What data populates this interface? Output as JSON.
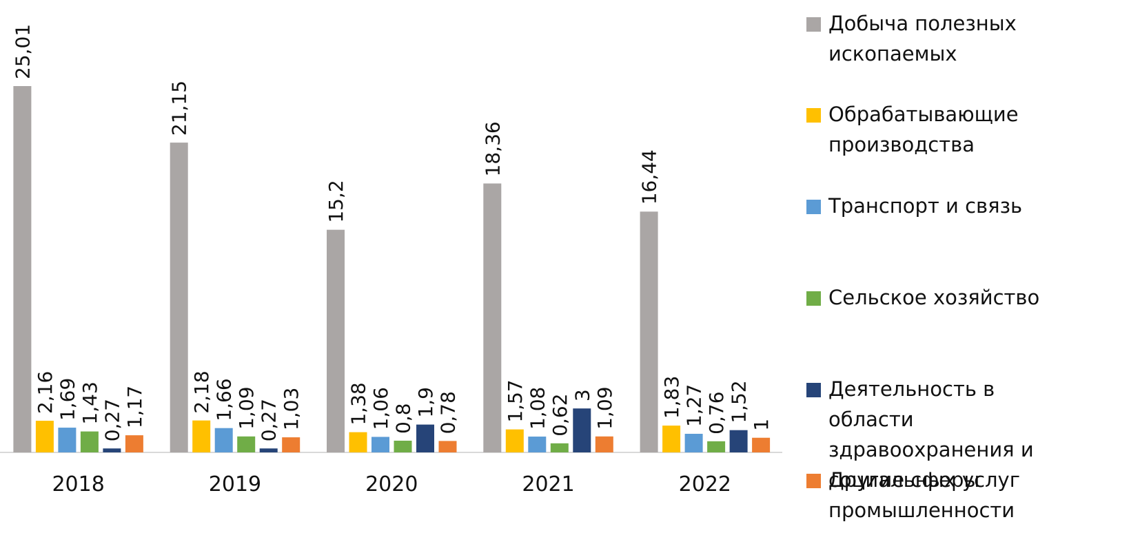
{
  "chart_data": {
    "type": "bar",
    "categories": [
      "2018",
      "2019",
      "2020",
      "2021",
      "2022"
    ],
    "series": [
      {
        "name": "Добыча полезных ископаемых",
        "color": "#aaa6a5",
        "values": [
          25.01,
          21.15,
          15.2,
          18.36,
          16.44
        ],
        "value_labels": [
          "25,01",
          "21,15",
          "15,2",
          "18,36",
          "16,44"
        ]
      },
      {
        "name": "Обрабатывающие производства",
        "color": "#ffc000",
        "values": [
          2.16,
          2.18,
          1.38,
          1.57,
          1.83
        ],
        "value_labels": [
          "2,16",
          "2,18",
          "1,38",
          "1,57",
          "1,83"
        ]
      },
      {
        "name": "Транспорт и связь",
        "color": "#5b9bd5",
        "values": [
          1.69,
          1.66,
          1.06,
          1.08,
          1.27
        ],
        "value_labels": [
          "1,69",
          "1,66",
          "1,06",
          "1,08",
          "1,27"
        ]
      },
      {
        "name": "Сельское хозяйство",
        "color": "#70ad47",
        "values": [
          1.43,
          1.09,
          0.8,
          0.62,
          0.76
        ],
        "value_labels": [
          "1,43",
          "1,09",
          "0,8",
          "0,62",
          "0,76"
        ]
      },
      {
        "name": "Деятельность в области здравоохранения и социальных услуг",
        "color": "#264478",
        "values": [
          0.27,
          0.27,
          1.9,
          3,
          1.52
        ],
        "value_labels": [
          "0,27",
          "0,27",
          "1,9",
          "3",
          "1,52"
        ]
      },
      {
        "name": "Другие сферы промышленности",
        "color": "#ed7d31",
        "values": [
          1.17,
          1.03,
          0.78,
          1.09,
          1
        ],
        "value_labels": [
          "1,17",
          "1,03",
          "0,78",
          "1,09",
          "1"
        ]
      }
    ]
  }
}
